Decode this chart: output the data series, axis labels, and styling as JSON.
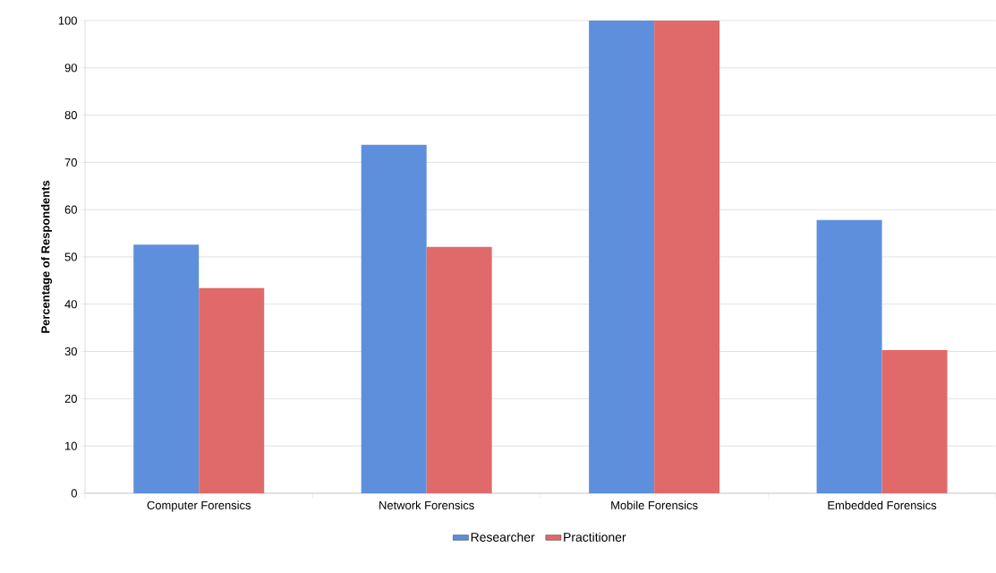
{
  "chart_data": {
    "type": "bar",
    "ylabel": "Percentage of Respondents",
    "categories": [
      "Computer Forensics",
      "Network Forensics",
      "Mobile Forensics",
      "Embedded Forensics"
    ],
    "series": [
      {
        "name": "Researcher",
        "color": "#5d8fdc",
        "values": [
          52.6,
          73.7,
          100,
          57.8
        ]
      },
      {
        "name": "Practitioner",
        "color": "#e06a6a",
        "values": [
          43.4,
          52.1,
          100,
          30.3
        ]
      }
    ],
    "ylim": [
      0,
      100
    ],
    "yticks": [
      0,
      10,
      20,
      30,
      40,
      50,
      60,
      70,
      80,
      90,
      100
    ],
    "grid": "y",
    "legend": "bottom"
  }
}
